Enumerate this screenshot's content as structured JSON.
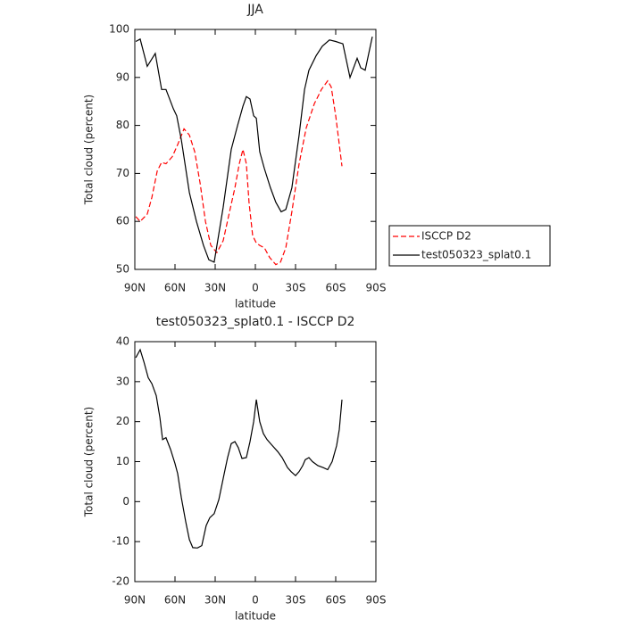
{
  "chart_data": [
    {
      "type": "line",
      "title": "JJA",
      "xlabel": "latitude",
      "ylabel": "Total cloud (percent)",
      "xlim": [
        90,
        -90
      ],
      "xticks": [
        {
          "value": 90,
          "label": "90N"
        },
        {
          "value": 60,
          "label": "60N"
        },
        {
          "value": 30,
          "label": "30N"
        },
        0,
        {
          "value": -30,
          "label": "30S"
        },
        {
          "value": -60,
          "label": "60S"
        },
        {
          "value": -90,
          "label": "90S"
        }
      ],
      "ylim": [
        50,
        100
      ],
      "yticks": [
        50,
        60,
        70,
        80,
        90,
        100
      ],
      "legend": "right",
      "series": [
        {
          "name": "ISCCP D2",
          "color": "#ff0000",
          "dash": "dashed",
          "x": [
            89.3,
            86,
            80.7,
            77.3,
            73.3,
            70,
            66.7,
            62,
            58,
            53.3,
            49.3,
            45.3,
            41.3,
            37.3,
            33.3,
            28.7,
            24,
            19.3,
            15.3,
            12,
            9.3,
            6.7,
            4.7,
            2,
            -0.7,
            -3.3,
            -6.7,
            -10.7,
            -15.3,
            -18.7,
            -22.7,
            -27.3,
            -32.7,
            -38,
            -44,
            -49.3,
            -54,
            -56.7,
            -60,
            -64.7
          ],
          "values": [
            61,
            60,
            61.5,
            65,
            70.5,
            72.3,
            72,
            73.5,
            76,
            79.3,
            78,
            74.5,
            68,
            60,
            55,
            53.5,
            56,
            62,
            67,
            72,
            75,
            72,
            64,
            57,
            55.5,
            55,
            54.5,
            52.5,
            51,
            51.5,
            54.5,
            62,
            72,
            79.5,
            84.5,
            87.5,
            89.3,
            88,
            82,
            71.5
          ]
        },
        {
          "name": "test050323_splat0.1",
          "color": "#000000",
          "dash": "solid",
          "x": [
            89.3,
            86,
            80.7,
            74.7,
            70,
            66.7,
            61.3,
            58.7,
            55.3,
            49.3,
            44,
            38.7,
            34.7,
            30.7,
            24,
            18,
            13.3,
            9.3,
            6.7,
            4,
            1.3,
            -0.7,
            -3.3,
            -6.7,
            -11.3,
            -15.3,
            -19.3,
            -22.7,
            -27.3,
            -32.7,
            -36.7,
            -40,
            -45.3,
            -50,
            -55.3,
            -60,
            -65.3,
            -68,
            -70.7,
            -76,
            -78.7,
            -82,
            -87.3
          ],
          "values": [
            97.5,
            98,
            92.3,
            95,
            87.5,
            87.5,
            83.5,
            82,
            77,
            66,
            60,
            55,
            52,
            51.5,
            63,
            75,
            80,
            84,
            86,
            85.5,
            82,
            81.5,
            74.5,
            71,
            67,
            64,
            62,
            62.5,
            67,
            78,
            87.5,
            91.5,
            94.5,
            96.5,
            97.8,
            97.5,
            97,
            93.5,
            90,
            94,
            92,
            91.5,
            98.5
          ]
        }
      ]
    },
    {
      "type": "line",
      "title": "test050323_splat0.1 - ISCCP D2",
      "xlabel": "latitude",
      "ylabel": "Total cloud (percent)",
      "xlim": [
        90,
        -90
      ],
      "xticks": [
        {
          "value": 90,
          "label": "90N"
        },
        {
          "value": 60,
          "label": "60N"
        },
        {
          "value": 30,
          "label": "30N"
        },
        0,
        {
          "value": -30,
          "label": "30S"
        },
        {
          "value": -60,
          "label": "60S"
        },
        {
          "value": -90,
          "label": "90S"
        }
      ],
      "ylim": [
        -20,
        40
      ],
      "yticks": [
        -20,
        -10,
        0,
        10,
        20,
        30,
        40
      ],
      "series": [
        {
          "color": "#000000",
          "dash": "solid",
          "x": [
            89.3,
            86,
            83.3,
            80,
            77.3,
            74,
            71.3,
            69.3,
            66.7,
            63.3,
            60,
            58,
            55.3,
            52,
            49.3,
            46.7,
            43.3,
            40,
            36.7,
            34,
            30.7,
            27.3,
            23.3,
            20.7,
            18,
            15.3,
            12.7,
            10,
            6.7,
            4,
            1.3,
            -0.7,
            -3.3,
            -6,
            -8.7,
            -12.7,
            -16.7,
            -20,
            -24,
            -26.7,
            -30,
            -32.7,
            -35.3,
            -37.3,
            -40,
            -42.7,
            -46.7,
            -50.7,
            -54,
            -57.3,
            -60.7,
            -62.7,
            -64.7
          ],
          "values": [
            36,
            38,
            35,
            31,
            29.5,
            26.5,
            21,
            15.5,
            16,
            13,
            9.5,
            7,
            1,
            -5,
            -9.5,
            -11.5,
            -11.6,
            -11,
            -6,
            -4,
            -3,
            0.5,
            7,
            11,
            14.5,
            15,
            13.5,
            10.8,
            11,
            15,
            20,
            25.5,
            20,
            17,
            15.5,
            14,
            12.5,
            11,
            8.5,
            7.5,
            6.5,
            7.5,
            9,
            10.5,
            11,
            10,
            9,
            8.5,
            8,
            10,
            14,
            18,
            25.5
          ]
        }
      ]
    }
  ]
}
